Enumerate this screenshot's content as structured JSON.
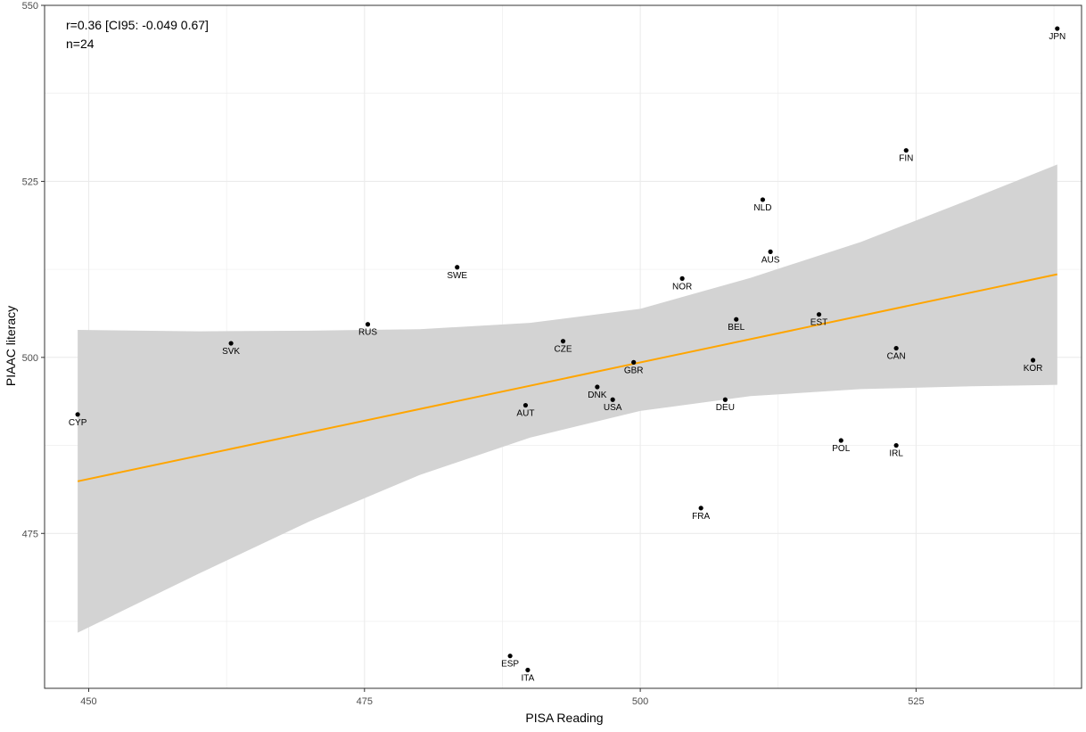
{
  "chart_data": {
    "type": "scatter",
    "xlabel": "PISA Reading",
    "ylabel": "PIAAC literacy",
    "xlim": [
      446,
      540
    ],
    "ylim": [
      453,
      550
    ],
    "x_ticks": [
      450,
      475,
      500,
      525
    ],
    "y_ticks": [
      475,
      500,
      525,
      550
    ],
    "grid": true,
    "annotation": [
      "r=0.36 [CI95: -0.049 0.67]",
      "n=24"
    ],
    "points": [
      {
        "label": "JPN",
        "x": 537.8,
        "y": 546.7
      },
      {
        "label": "FIN",
        "x": 524.1,
        "y": 529.4
      },
      {
        "label": "NLD",
        "x": 511.1,
        "y": 522.4
      },
      {
        "label": "AUS",
        "x": 511.8,
        "y": 515.0
      },
      {
        "label": "SWE",
        "x": 483.4,
        "y": 512.8
      },
      {
        "label": "NOR",
        "x": 503.8,
        "y": 511.2
      },
      {
        "label": "EST",
        "x": 516.2,
        "y": 506.1
      },
      {
        "label": "BEL",
        "x": 508.7,
        "y": 505.4
      },
      {
        "label": "RUS",
        "x": 475.3,
        "y": 504.7
      },
      {
        "label": "CZE",
        "x": 493.0,
        "y": 502.3
      },
      {
        "label": "SVK",
        "x": 462.9,
        "y": 502.0
      },
      {
        "label": "CAN",
        "x": 523.2,
        "y": 501.3
      },
      {
        "label": "KOR",
        "x": 535.6,
        "y": 499.6
      },
      {
        "label": "GBR",
        "x": 499.4,
        "y": 499.3
      },
      {
        "label": "DNK",
        "x": 496.1,
        "y": 495.8
      },
      {
        "label": "USA",
        "x": 497.5,
        "y": 494.0
      },
      {
        "label": "DEU",
        "x": 507.7,
        "y": 494.0
      },
      {
        "label": "AUT",
        "x": 489.6,
        "y": 493.2
      },
      {
        "label": "CYP",
        "x": 449.0,
        "y": 491.9
      },
      {
        "label": "POL",
        "x": 518.2,
        "y": 488.2
      },
      {
        "label": "IRL",
        "x": 523.2,
        "y": 487.5
      },
      {
        "label": "FRA",
        "x": 505.5,
        "y": 478.6
      },
      {
        "label": "ESP",
        "x": 488.2,
        "y": 457.6
      },
      {
        "label": "ITA",
        "x": 489.8,
        "y": 455.6
      }
    ],
    "fit_line": {
      "x": [
        449.0,
        537.8
      ],
      "y": [
        482.4,
        511.8
      ],
      "color": "#FFA500"
    },
    "confidence_band": {
      "x": [
        449.0,
        460.0,
        470.0,
        480.0,
        490.0,
        500.0,
        510.0,
        520.0,
        530.0,
        537.8
      ],
      "lower": [
        460.9,
        469.3,
        476.7,
        483.3,
        488.6,
        492.4,
        494.5,
        495.5,
        495.9,
        496.1
      ],
      "upper": [
        503.9,
        503.7,
        503.8,
        504.0,
        504.9,
        506.9,
        511.3,
        516.4,
        522.5,
        527.4
      ],
      "color": "#D3D3D3"
    }
  }
}
